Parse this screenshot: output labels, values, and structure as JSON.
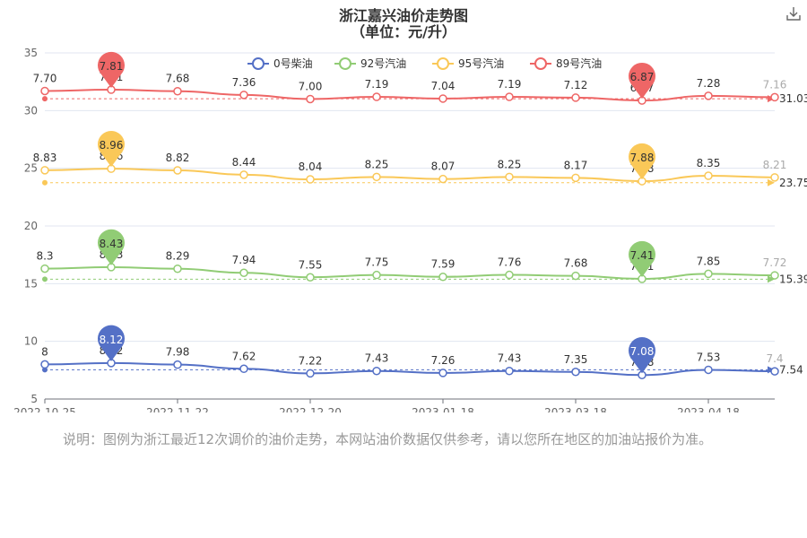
{
  "title_line1": "浙江嘉兴油价走势图",
  "title_line2": "（单位：元/升）",
  "note": "说明：图例为浙江最近12次调价的油价走势，本网站油价数据仅供参考，请以您所在地区的加油站报价为准。",
  "download_icon": "download-icon",
  "chart_data": {
    "type": "line",
    "x_ticks": [
      "2022-10-25",
      "2022-11-22",
      "2022-12-20",
      "2023-01-18",
      "2023-03-18",
      "2023-04-18"
    ],
    "y_ticks": [
      "5",
      "10",
      "15",
      "20",
      "25",
      "30",
      "35"
    ],
    "ylim": [
      5,
      35
    ],
    "series": [
      {
        "name": "0号柴油",
        "color": "#5470c6",
        "offset": 0,
        "mark_line": "7.54",
        "values": [
          8,
          8.12,
          7.98,
          7.62,
          7.22,
          7.43,
          7.26,
          7.43,
          7.35,
          7.08,
          7.53,
          7.4
        ],
        "labels": [
          "8",
          "8.12",
          "7.98",
          "7.62",
          "7.22",
          "7.43",
          "7.26",
          "7.43",
          "7.35",
          "7.08",
          "7.53",
          "7.4"
        ],
        "max_label": "8.12",
        "min_label": "7.08"
      },
      {
        "name": "92号汽油",
        "color": "#91cc75",
        "offset": 8,
        "mark_line": "15.39",
        "values": [
          8.3,
          8.43,
          8.29,
          7.94,
          7.55,
          7.75,
          7.59,
          7.76,
          7.68,
          7.41,
          7.85,
          7.72
        ],
        "labels": [
          "8.3",
          "8.43",
          "8.29",
          "7.94",
          "7.55",
          "7.75",
          "7.59",
          "7.76",
          "7.68",
          "7.41",
          "7.85",
          "7.72"
        ],
        "max_label": "8.43",
        "min_label": "7.41"
      },
      {
        "name": "95号汽油",
        "color": "#fac858",
        "offset": 16,
        "mark_line": "23.75",
        "values": [
          8.83,
          8.96,
          8.82,
          8.44,
          8.04,
          8.25,
          8.07,
          8.25,
          8.17,
          7.88,
          8.35,
          8.21
        ],
        "labels": [
          "8.83",
          "8.96",
          "8.82",
          "8.44",
          "8.04",
          "8.25",
          "8.07",
          "8.25",
          "8.17",
          "7.88",
          "8.35",
          "8.21"
        ],
        "max_label": "8.96",
        "min_label": "7.88"
      },
      {
        "name": "89号汽油",
        "color": "#ee6666",
        "offset": 24,
        "mark_line": "31.03",
        "values": [
          7.7,
          7.81,
          7.68,
          7.36,
          7.0,
          7.19,
          7.04,
          7.19,
          7.12,
          6.87,
          7.28,
          7.16
        ],
        "labels": [
          "7.70",
          "7.81",
          "7.68",
          "7.36",
          "7.00",
          "7.19",
          "7.04",
          "7.19",
          "7.12",
          "6.87",
          "7.28",
          "7.16"
        ],
        "max_label": "7.81",
        "min_label": "6.87"
      }
    ]
  }
}
